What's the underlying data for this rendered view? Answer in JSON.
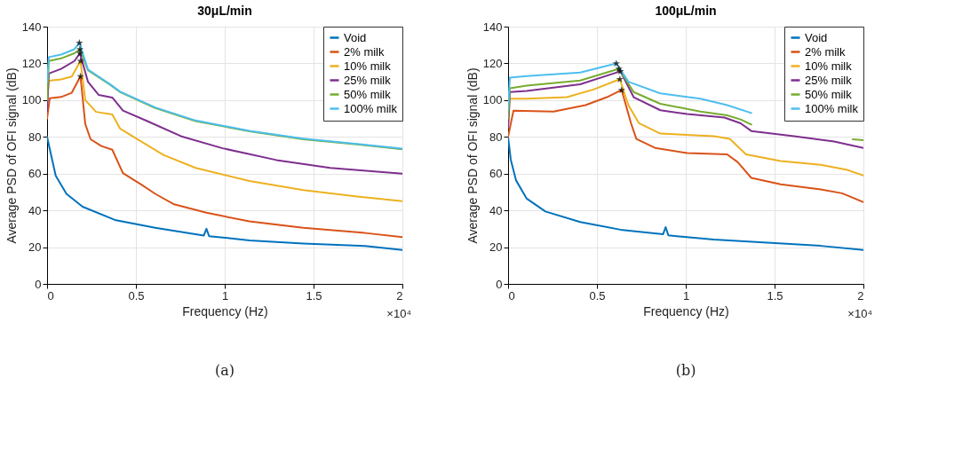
{
  "chart_data": [
    {
      "type": "line",
      "title": "30μL/min",
      "xlabel": "Frequency (Hz)",
      "ylabel": "Average PSD of OFI signal (dB)",
      "xlim": [
        0,
        2
      ],
      "ylim": [
        0,
        140
      ],
      "xticks": [
        0,
        0.5,
        1,
        1.5,
        2
      ],
      "yticks": [
        0,
        20,
        40,
        60,
        80,
        100,
        120,
        140
      ],
      "grid": true,
      "legend": "top right",
      "marker": "none",
      "line_style": "solid",
      "annotations": [
        "×10⁴",
        "(a)"
      ],
      "series": [
        {
          "name": "Void",
          "color": "#0072bd",
          "x": [
            0,
            0.0485,
            0.109,
            0.2,
            0.382,
            0.609,
            0.882,
            0.897,
            0.912,
            1.139,
            1.442,
            1.79,
            2
          ],
          "values": [
            80,
            58.9,
            49,
            42,
            34.8,
            30.5,
            26.3,
            30,
            26,
            23.7,
            22,
            20.6,
            18.5
          ]
        },
        {
          "name": "2% milk",
          "color": "#d95319",
          "x": [
            0,
            0.015,
            0.079,
            0.139,
            0.188,
            0.215,
            0.245,
            0.306,
            0.367,
            0.427,
            0.533,
            0.609,
            0.715,
            0.897,
            1.139,
            1.442,
            1.79,
            2
          ],
          "values": [
            90,
            101,
            101.7,
            104,
            113,
            87,
            78.7,
            75,
            73,
            60.3,
            53.9,
            49,
            43.3,
            38.7,
            34,
            30.5,
            27.7,
            25.5
          ]
        },
        {
          "name": "10% milk",
          "color": "#edb120",
          "x": [
            0,
            0.01,
            0.079,
            0.139,
            0.188,
            0.215,
            0.276,
            0.367,
            0.412,
            0.533,
            0.655,
            0.836,
            1.139,
            1.442,
            1.745,
            2
          ],
          "values": [
            100,
            110.6,
            111.3,
            112.8,
            121.3,
            100,
            93.6,
            92.2,
            84.4,
            77.3,
            70.2,
            63.1,
            56,
            51.1,
            47.5,
            45
          ]
        },
        {
          "name": "25% milk",
          "color": "#7e2f8e",
          "x": [
            0,
            0.01,
            0.079,
            0.154,
            0.185,
            0.23,
            0.291,
            0.367,
            0.427,
            0.564,
            0.761,
            0.988,
            1.291,
            1.594,
            2
          ],
          "values": [
            94,
            114.5,
            117,
            121.3,
            125.5,
            110,
            102.8,
            101.4,
            94.3,
            88.6,
            80.1,
            73.8,
            67.4,
            63.1,
            60
          ]
        },
        {
          "name": "50% milk",
          "color": "#77ac30",
          "x": [
            0,
            0.01,
            0.079,
            0.154,
            0.185,
            0.23,
            0.352,
            0.412,
            0.609,
            0.836,
            1.139,
            1.442,
            1.745,
            2
          ],
          "values": [
            100,
            121.3,
            122.7,
            125.5,
            127.7,
            116.3,
            108.5,
            104.3,
            95.7,
            88.6,
            83,
            78.7,
            75.9,
            73.3
          ]
        },
        {
          "name": "100% milk",
          "color": "#4dbeee",
          "x": [
            0,
            0.01,
            0.079,
            0.154,
            0.182,
            0.23,
            0.352,
            0.412,
            0.609,
            0.836,
            1.139,
            1.442,
            1.745,
            2
          ],
          "values": [
            110,
            123.4,
            124.8,
            127.7,
            131.2,
            116.7,
            108.8,
            104.6,
            96,
            88.9,
            83.3,
            79,
            76.2,
            73.6
          ]
        },
        {
          "type": "scatter",
          "marker": "star",
          "color": "#000000",
          "x": [
            0.188,
            0.188,
            0.185,
            0.185,
            0.182
          ],
          "values": [
            113,
            121.3,
            125.5,
            127.7,
            131.2
          ]
        }
      ]
    },
    {
      "type": "line",
      "title": "100μL/min",
      "xlabel": "Frequency (Hz)",
      "ylabel": "Average PSD of OFI signal (dB)",
      "xlim": [
        0,
        2
      ],
      "ylim": [
        0,
        140
      ],
      "xticks": [
        0,
        0.5,
        1,
        1.5,
        2
      ],
      "yticks": [
        0,
        20,
        40,
        60,
        80,
        100,
        120,
        140
      ],
      "grid": true,
      "legend": "top right",
      "marker": "none",
      "line_style": "solid",
      "annotations": [
        "×10⁴",
        "(b)"
      ],
      "series": [
        {
          "name": "Void",
          "color": "#0072bd",
          "x": [
            0,
            0.015,
            0.045,
            0.105,
            0.21,
            0.406,
            0.632,
            0.872,
            0.887,
            0.902,
            1.158,
            1.459,
            1.76,
            2
          ],
          "values": [
            80,
            67.6,
            56.3,
            46.4,
            39.4,
            33.7,
            29.5,
            27,
            30.9,
            26.4,
            24.1,
            22.4,
            20.7,
            18.5
          ]
        },
        {
          "name": "2% milk",
          "color": "#d95319",
          "x": [
            0,
            0.03,
            0.256,
            0.436,
            0.556,
            0.639,
            0.692,
            0.722,
            0.827,
            1.008,
            1.233,
            1.293,
            1.369,
            1.534,
            1.76,
            1.88,
            2
          ],
          "values": [
            80,
            94.2,
            93.8,
            97.3,
            101.6,
            105.5,
            87.4,
            78.9,
            74,
            71.2,
            70.5,
            66.2,
            57.7,
            54.2,
            51.4,
            49.3,
            44.5
          ]
        },
        {
          "name": "10% milk",
          "color": "#edb120",
          "x": [
            0,
            0.01,
            0.105,
            0.331,
            0.481,
            0.629,
            0.677,
            0.737,
            0.857,
            1.158,
            1.248,
            1.339,
            1.534,
            1.76,
            1.91,
            2
          ],
          "values": [
            85,
            100.8,
            100.8,
            101.6,
            105.8,
            111.4,
            97.3,
            87.4,
            81.8,
            80.4,
            78.9,
            70.5,
            66.9,
            64.8,
            62,
            59
          ]
        },
        {
          "name": "25% milk",
          "color": "#7e2f8e",
          "x": [
            0,
            0.01,
            0.105,
            0.406,
            0.632,
            0.707,
            0.857,
            1.008,
            1.218,
            1.309,
            1.369,
            1.609,
            1.835,
            2
          ],
          "values": [
            85,
            104.4,
            105,
            108.6,
            115.7,
            101.6,
            94.5,
            92.4,
            90.5,
            87.4,
            83.2,
            80.4,
            77.5,
            74
          ]
        },
        {
          "name": "50% milk",
          "color": "#77ac30",
          "x": [
            0,
            0.01,
            0.105,
            0.406,
            0.624,
            0.707,
            0.857,
            1.083,
            1.233,
            1.309,
            1.369,
            1.6,
            1.94,
            2
          ],
          "values": [
            90,
            106.5,
            107.9,
            110.7,
            117.1,
            104.4,
            98,
            93.8,
            91.7,
            89.5,
            86.7,
            null,
            78.7,
            78.2
          ]
        },
        {
          "name": "100% milk",
          "color": "#4dbeee",
          "x": [
            0,
            0.01,
            0.105,
            0.406,
            0.609,
            0.677,
            0.857,
            1.083,
            1.233,
            1.369
          ],
          "values": [
            95,
            112.2,
            113.1,
            115,
            120,
            110,
            103.7,
            100.8,
            97.3,
            93
          ]
        },
        {
          "type": "scatter",
          "marker": "star",
          "color": "#000000",
          "x": [
            0.639,
            0.629,
            0.632,
            0.624,
            0.609
          ],
          "values": [
            105.5,
            111.4,
            115.7,
            117.1,
            120
          ]
        }
      ]
    }
  ]
}
